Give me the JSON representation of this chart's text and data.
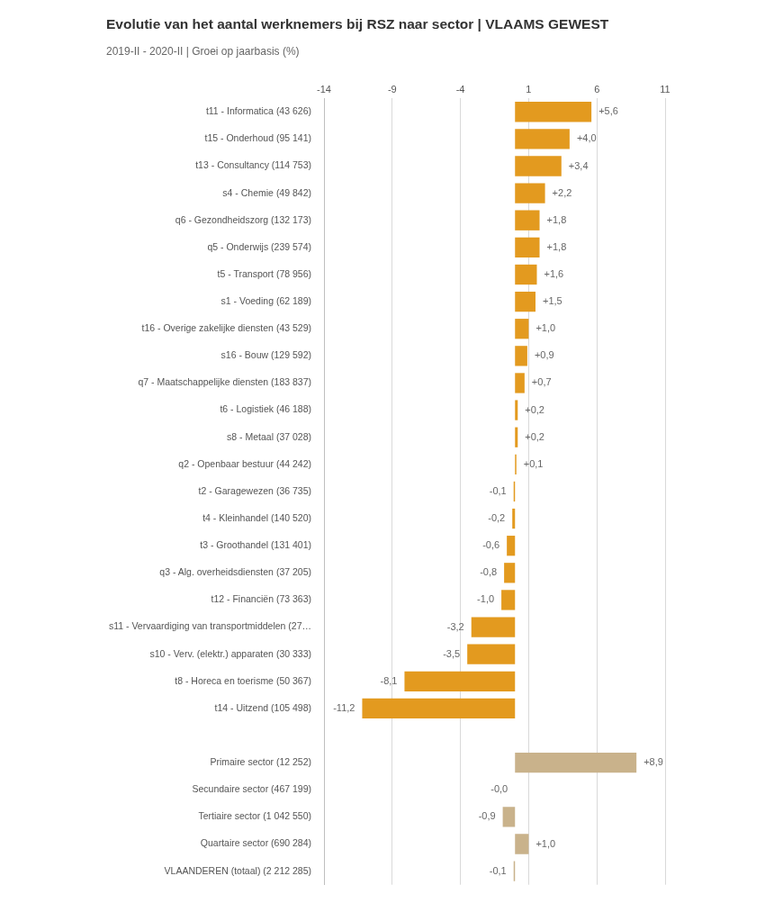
{
  "chart_data": {
    "type": "bar",
    "orientation": "horizontal",
    "title": "Evolutie van het aantal werknemers bij RSZ naar sector | VLAAMS GEWEST",
    "subtitle": "2019-II - 2020-II | Groei op jaarbasis (%)",
    "categories": [
      "t11 - Informatica (43 626)",
      "t15 - Onderhoud (95 141)",
      "t13 - Consultancy (114 753)",
      "s4 - Chemie (49 842)",
      "q6 - Gezondheidszorg (132 173)",
      "q5 - Onderwijs (239 574)",
      "t5 - Transport (78 956)",
      "s1 - Voeding (62 189)",
      "t16 - Overige zakelijke diensten (43 529)",
      "s16 - Bouw (129 592)",
      "q7 - Maatschappelijke diensten (183 837)",
      "t6 - Logistiek (46 188)",
      "s8 - Metaal (37 028)",
      "q2 - Openbaar bestuur (44 242)",
      "t2 - Garagewezen (36 735)",
      "t4 - Kleinhandel (140 520)",
      "t3 - Groothandel (131 401)",
      "q3 - Alg. overheidsdiensten (37 205)",
      "t12 - Financiën (73 363)",
      "s11 - Vervaardiging van transportmiddelen (27…",
      "s10 - Verv. (elektr.) apparaten (30 333)",
      "t8 - Horeca en toerisme (50 367)",
      "t14 - Uitzend (105 498)",
      null,
      "Primaire sector (12 252)",
      "Secundaire sector (467 199)",
      "Tertiaire sector (1 042 550)",
      "Quartaire sector (690 284)",
      "VLAANDEREN (totaal) (2 212 285)"
    ],
    "values": [
      5.6,
      4.0,
      3.4,
      2.2,
      1.8,
      1.8,
      1.6,
      1.5,
      1.0,
      0.9,
      0.7,
      0.2,
      0.2,
      0.1,
      -0.1,
      -0.2,
      -0.6,
      -0.8,
      -1.0,
      -3.2,
      -3.5,
      -8.1,
      -11.2,
      null,
      8.9,
      0,
      -0.9,
      1.0,
      -0.1
    ],
    "value_labels": [
      "+5,6",
      "+4,0",
      "+3,4",
      "+2,2",
      "+1,8",
      "+1,8",
      "+1,6",
      "+1,5",
      "+1,0",
      "+0,9",
      "+0,7",
      "+0,2",
      "+0,2",
      "+0,1",
      "-0,1",
      "-0,2",
      "-0,6",
      "-0,8",
      "-1,0",
      "-3,2",
      "-3,5",
      "-8,1",
      "-11,2",
      null,
      "+8,9",
      "-0,0",
      "-0,9",
      "+1,0",
      "-0,1"
    ],
    "colors": [
      "#e39a1f",
      "#e39a1f",
      "#e39a1f",
      "#e39a1f",
      "#e39a1f",
      "#e39a1f",
      "#e39a1f",
      "#e39a1f",
      "#e39a1f",
      "#e39a1f",
      "#e39a1f",
      "#e39a1f",
      "#e39a1f",
      "#e39a1f",
      "#e39a1f",
      "#e39a1f",
      "#e39a1f",
      "#e39a1f",
      "#e39a1f",
      "#e39a1f",
      "#e39a1f",
      "#e39a1f",
      "#e39a1f",
      "#e39a1f",
      "#c9b28b",
      "#c9b28b",
      "#c9b28b",
      "#c9b28b",
      "#c9b28b"
    ],
    "xlim": [
      -14,
      11
    ],
    "xticks": [
      -14,
      -9,
      -4,
      1,
      6,
      11
    ],
    "grid": "x",
    "legend": false
  }
}
